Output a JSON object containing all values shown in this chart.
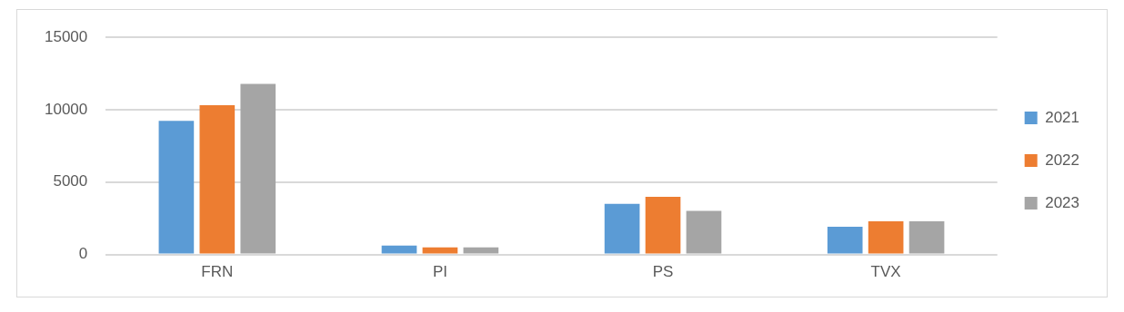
{
  "chart_data": {
    "type": "bar",
    "categories": [
      "FRN",
      "PI",
      "PS",
      "TVX"
    ],
    "series": [
      {
        "name": "2021",
        "color": "#5b9bd5",
        "values": [
          9240,
          610,
          3500,
          1920
        ]
      },
      {
        "name": "2022",
        "color": "#ed7d31",
        "values": [
          10310,
          490,
          3990,
          2290
        ]
      },
      {
        "name": "2023",
        "color": "#a5a5a5",
        "values": [
          11790,
          490,
          3020,
          2290
        ]
      }
    ],
    "ylim": [
      0,
      15000
    ],
    "yticks": [
      0,
      5000,
      10000,
      15000
    ],
    "grid": "y",
    "legend": "right"
  }
}
